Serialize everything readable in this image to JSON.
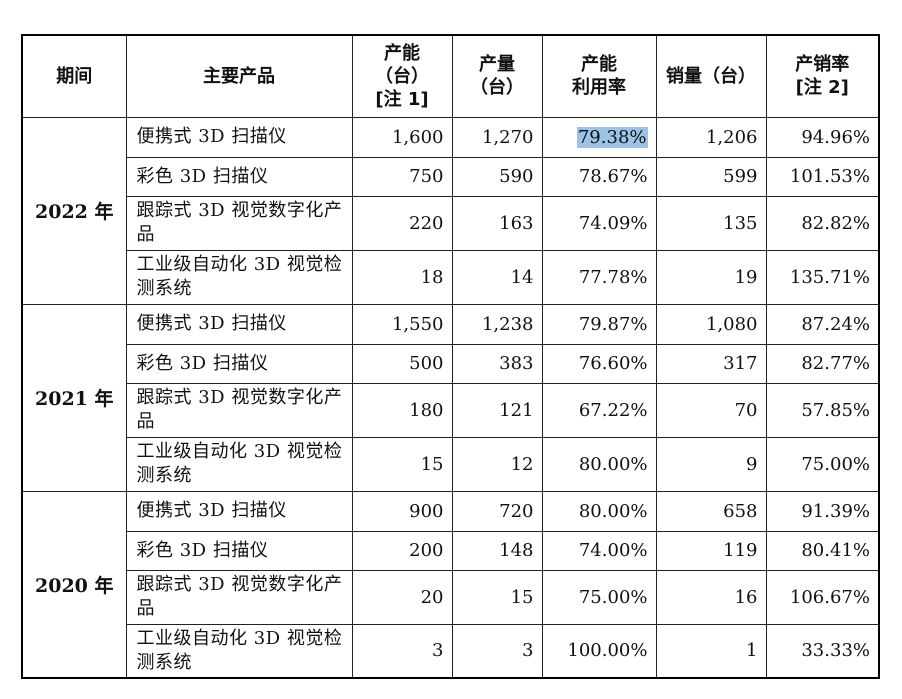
{
  "headers": {
    "period": "期间",
    "product": "主要产品",
    "capacity": [
      "产能",
      "（台）",
      "[注 1]"
    ],
    "output": [
      "产量",
      "（台）"
    ],
    "utilization": [
      "产能",
      "利用率"
    ],
    "sales": "销量（台）",
    "sales_rate": [
      "产销率",
      "[注 2]"
    ]
  },
  "groups": [
    {
      "period": "2022 年",
      "rows": [
        {
          "product": "便携式 3D 扫描仪",
          "capacity": "1,600",
          "output": "1,270",
          "utilization": "79.38%",
          "sales": "1,206",
          "rate": "94.96%"
        },
        {
          "product": "彩色 3D 扫描仪",
          "capacity": "750",
          "output": "590",
          "utilization": "78.67%",
          "sales": "599",
          "rate": "101.53%"
        },
        {
          "product": "跟踪式 3D 视觉数字化产品",
          "capacity": "220",
          "output": "163",
          "utilization": "74.09%",
          "sales": "135",
          "rate": "82.82%"
        },
        {
          "product": "工业级自动化 3D 视觉检测系统",
          "capacity": "18",
          "output": "14",
          "utilization": "77.78%",
          "sales": "19",
          "rate": "135.71%"
        }
      ]
    },
    {
      "period": "2021 年",
      "rows": [
        {
          "product": "便携式 3D 扫描仪",
          "capacity": "1,550",
          "output": "1,238",
          "utilization": "79.87%",
          "sales": "1,080",
          "rate": "87.24%"
        },
        {
          "product": "彩色 3D 扫描仪",
          "capacity": "500",
          "output": "383",
          "utilization": "76.60%",
          "sales": "317",
          "rate": "82.77%"
        },
        {
          "product": "跟踪式 3D 视觉数字化产品",
          "capacity": "180",
          "output": "121",
          "utilization": "67.22%",
          "sales": "70",
          "rate": "57.85%"
        },
        {
          "product": "工业级自动化 3D 视觉检测系统",
          "capacity": "15",
          "output": "12",
          "utilization": "80.00%",
          "sales": "9",
          "rate": "75.00%"
        }
      ]
    },
    {
      "period": "2020 年",
      "rows": [
        {
          "product": "便携式 3D 扫描仪",
          "capacity": "900",
          "output": "720",
          "utilization": "80.00%",
          "sales": "658",
          "rate": "91.39%"
        },
        {
          "product": "彩色 3D 扫描仪",
          "capacity": "200",
          "output": "148",
          "utilization": "74.00%",
          "sales": "119",
          "rate": "80.41%"
        },
        {
          "product": "跟踪式 3D 视觉数字化产品",
          "capacity": "20",
          "output": "15",
          "utilization": "75.00%",
          "sales": "16",
          "rate": "106.67%"
        },
        {
          "product": "工业级自动化 3D 视觉检测系统",
          "capacity": "3",
          "output": "3",
          "utilization": "100.00%",
          "sales": "1",
          "rate": "33.33%"
        }
      ]
    }
  ],
  "highlight_color": "#9cc3e6"
}
